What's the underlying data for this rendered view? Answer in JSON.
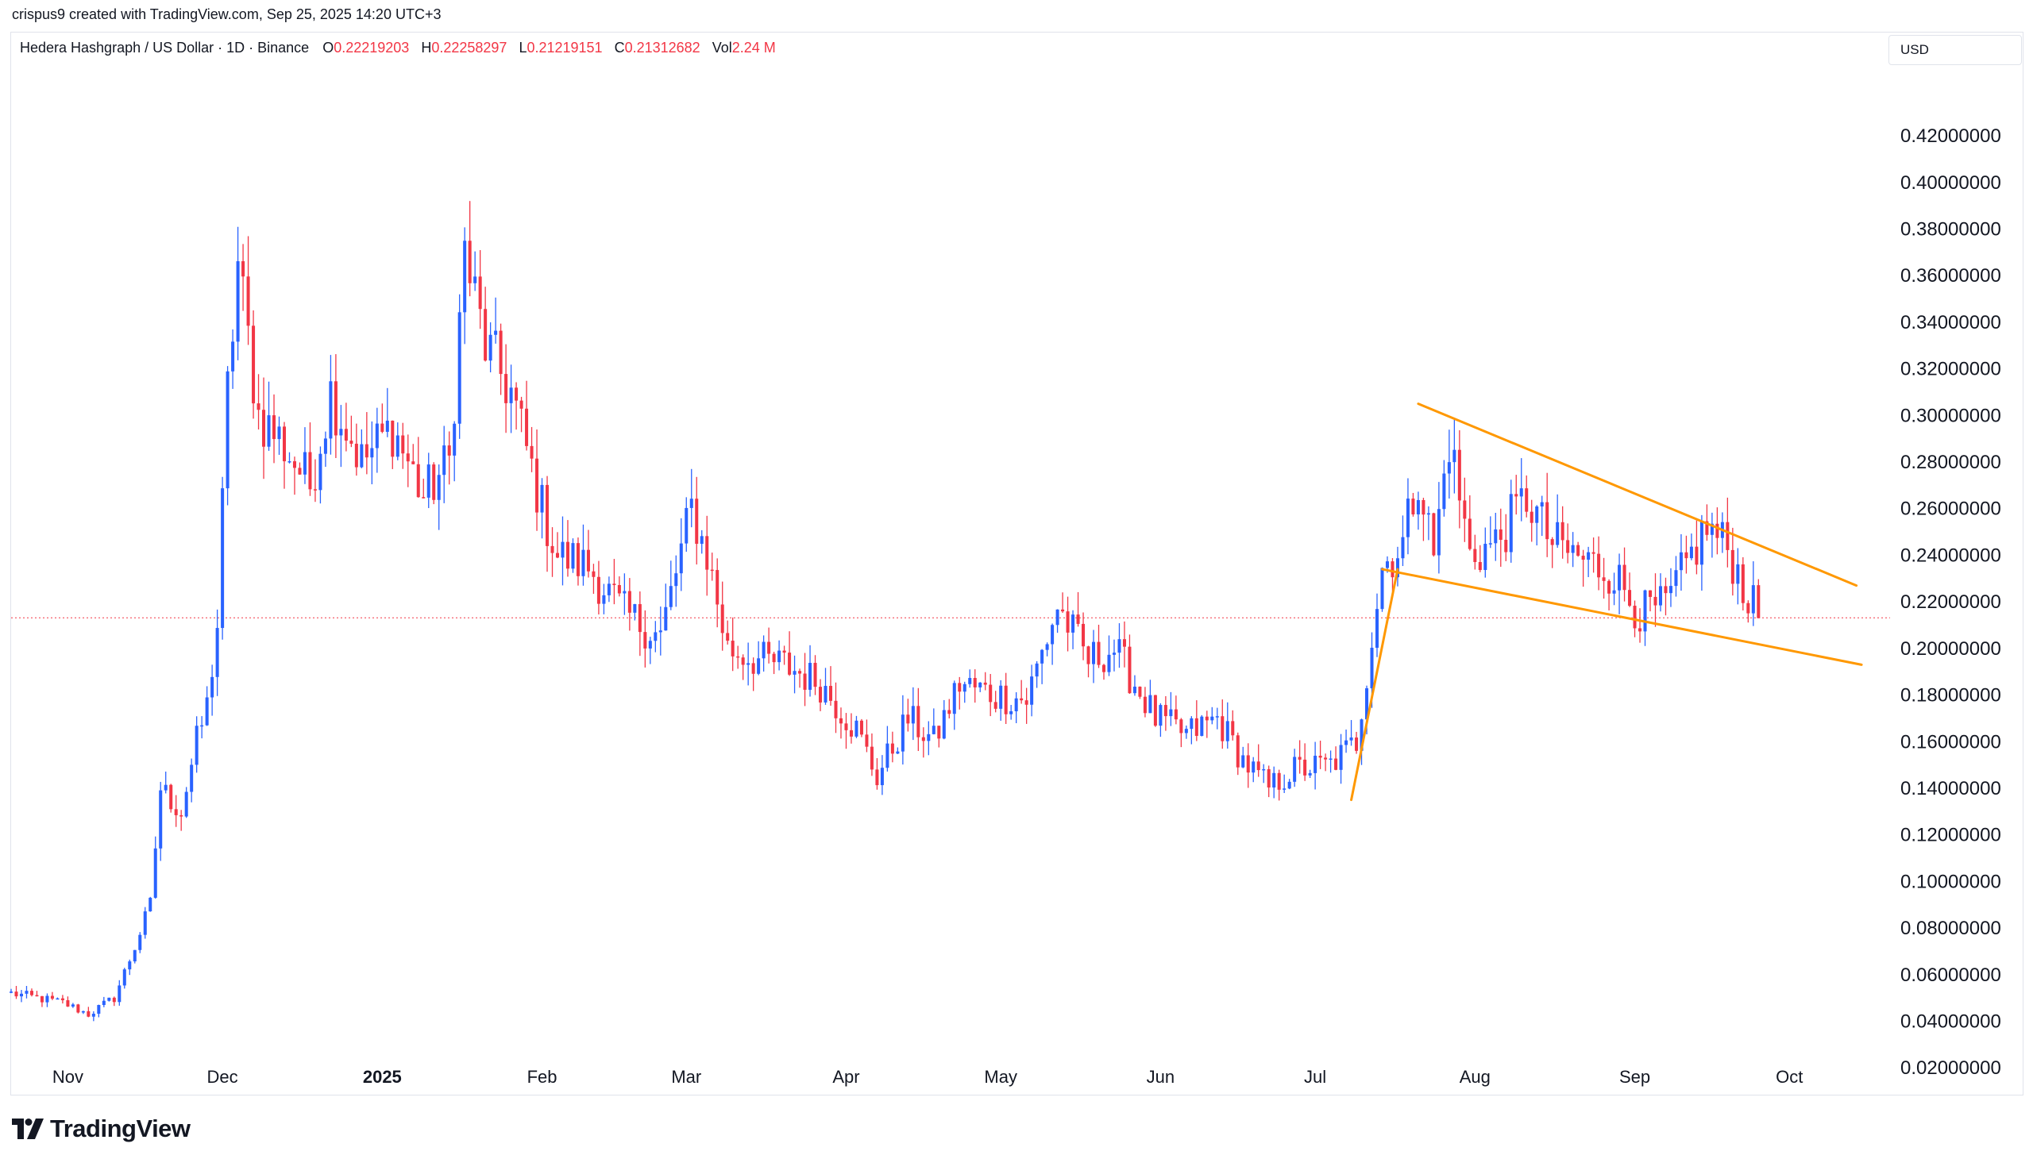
{
  "header": {
    "caption": "crispus9 created with TradingView.com, Sep 25, 2025 14:20 UTC+3"
  },
  "legend": {
    "symbol": "Hedera Hashgraph / US Dollar · 1D · Binance",
    "open_key": "O",
    "open": "0.22219203",
    "high_key": "H",
    "high": "0.22258297",
    "low_key": "L",
    "low": "0.21219151",
    "close_key": "C",
    "close": "0.21312682",
    "vol_key": "Vol",
    "vol": "2.24 M"
  },
  "currency_button": "USD",
  "footer": {
    "brand": "TradingView"
  },
  "colors": {
    "up": "#2962ff",
    "down": "#f23645",
    "pattern": "#ff9800",
    "price_line": "#f23645",
    "axis_text": "#131722"
  },
  "chart_data": {
    "type": "candlestick",
    "x_start": "2024-10-21",
    "x_end": "2025-10-15",
    "ylim": [
      0.0,
      0.43
    ],
    "y_ticks": [
      "0.42000000",
      "0.40000000",
      "0.38000000",
      "0.36000000",
      "0.34000000",
      "0.32000000",
      "0.30000000",
      "0.28000000",
      "0.26000000",
      "0.24000000",
      "0.22000000",
      "0.20000000",
      "0.18000000",
      "0.16000000",
      "0.14000000",
      "0.12000000",
      "0.10000000",
      "0.08000000",
      "0.06000000",
      "0.04000000",
      "0.02000000"
    ],
    "x_ticks": [
      {
        "label": "Nov",
        "date": "2024-11-01",
        "bold": false
      },
      {
        "label": "Dec",
        "date": "2024-12-01",
        "bold": false
      },
      {
        "label": "2025",
        "date": "2025-01-01",
        "bold": true
      },
      {
        "label": "Feb",
        "date": "2025-02-01",
        "bold": false
      },
      {
        "label": "Mar",
        "date": "2025-03-01",
        "bold": false
      },
      {
        "label": "Apr",
        "date": "2025-04-01",
        "bold": false
      },
      {
        "label": "May",
        "date": "2025-05-01",
        "bold": false
      },
      {
        "label": "Jun",
        "date": "2025-06-01",
        "bold": false
      },
      {
        "label": "Jul",
        "date": "2025-07-01",
        "bold": false
      },
      {
        "label": "Aug",
        "date": "2025-08-01",
        "bold": false
      },
      {
        "label": "Sep",
        "date": "2025-09-01",
        "bold": false
      },
      {
        "label": "Oct",
        "date": "2025-10-01",
        "bold": false
      }
    ],
    "last_price": 0.21312682,
    "close_path": [
      [
        "2024-10-21",
        0.052
      ],
      [
        "2024-10-31",
        0.048
      ],
      [
        "2024-11-05",
        0.043
      ],
      [
        "2024-11-10",
        0.05
      ],
      [
        "2024-11-14",
        0.072
      ],
      [
        "2024-11-17",
        0.09
      ],
      [
        "2024-11-19",
        0.14
      ],
      [
        "2024-11-23",
        0.13
      ],
      [
        "2024-11-26",
        0.16
      ],
      [
        "2024-11-28",
        0.175
      ],
      [
        "2024-11-30",
        0.21
      ],
      [
        "2024-12-02",
        0.31
      ],
      [
        "2024-12-04",
        0.365
      ],
      [
        "2024-12-08",
        0.3
      ],
      [
        "2024-12-12",
        0.29
      ],
      [
        "2024-12-18",
        0.27
      ],
      [
        "2024-12-22",
        0.31
      ],
      [
        "2024-12-28",
        0.28
      ],
      [
        "2025-01-03",
        0.295
      ],
      [
        "2025-01-09",
        0.265
      ],
      [
        "2025-01-14",
        0.28
      ],
      [
        "2025-01-17",
        0.37
      ],
      [
        "2025-01-21",
        0.33
      ],
      [
        "2025-01-26",
        0.31
      ],
      [
        "2025-02-01",
        0.26
      ],
      [
        "2025-02-04",
        0.24
      ],
      [
        "2025-02-10",
        0.235
      ],
      [
        "2025-02-17",
        0.215
      ],
      [
        "2025-02-24",
        0.205
      ],
      [
        "2025-03-02",
        0.26
      ],
      [
        "2025-03-05",
        0.24
      ],
      [
        "2025-03-09",
        0.2
      ],
      [
        "2025-03-15",
        0.195
      ],
      [
        "2025-03-20",
        0.193
      ],
      [
        "2025-03-27",
        0.185
      ],
      [
        "2025-04-03",
        0.165
      ],
      [
        "2025-04-07",
        0.145
      ],
      [
        "2025-04-13",
        0.17
      ],
      [
        "2025-04-18",
        0.16
      ],
      [
        "2025-04-23",
        0.185
      ],
      [
        "2025-04-30",
        0.18
      ],
      [
        "2025-05-06",
        0.178
      ],
      [
        "2025-05-12",
        0.218
      ],
      [
        "2025-05-18",
        0.195
      ],
      [
        "2025-05-23",
        0.2
      ],
      [
        "2025-05-31",
        0.17
      ],
      [
        "2025-06-06",
        0.163
      ],
      [
        "2025-06-12",
        0.17
      ],
      [
        "2025-06-17",
        0.152
      ],
      [
        "2025-06-22",
        0.14
      ],
      [
        "2025-06-27",
        0.148
      ],
      [
        "2025-07-04",
        0.15
      ],
      [
        "2025-07-09",
        0.16
      ],
      [
        "2025-07-11",
        0.19
      ],
      [
        "2025-07-14",
        0.235
      ],
      [
        "2025-07-18",
        0.245
      ],
      [
        "2025-07-21",
        0.275
      ],
      [
        "2025-07-24",
        0.24
      ],
      [
        "2025-07-27",
        0.29
      ],
      [
        "2025-07-31",
        0.24
      ],
      [
        "2025-08-05",
        0.245
      ],
      [
        "2025-08-11",
        0.265
      ],
      [
        "2025-08-16",
        0.245
      ],
      [
        "2025-08-22",
        0.238
      ],
      [
        "2025-08-28",
        0.232
      ],
      [
        "2025-09-02",
        0.215
      ],
      [
        "2025-09-07",
        0.218
      ],
      [
        "2025-09-12",
        0.24
      ],
      [
        "2025-09-15",
        0.252
      ],
      [
        "2025-09-19",
        0.243
      ],
      [
        "2025-09-23",
        0.222
      ],
      [
        "2025-09-25",
        0.213
      ]
    ],
    "pattern_lines": [
      {
        "from": [
          "2025-07-08",
          0.135
        ],
        "to": [
          "2025-07-17",
          0.234
        ]
      },
      {
        "from": [
          "2025-07-14",
          0.234
        ],
        "to": [
          "2025-10-15",
          0.193
        ]
      },
      {
        "from": [
          "2025-07-21",
          0.305
        ],
        "to": [
          "2025-10-14",
          0.227
        ]
      }
    ]
  }
}
